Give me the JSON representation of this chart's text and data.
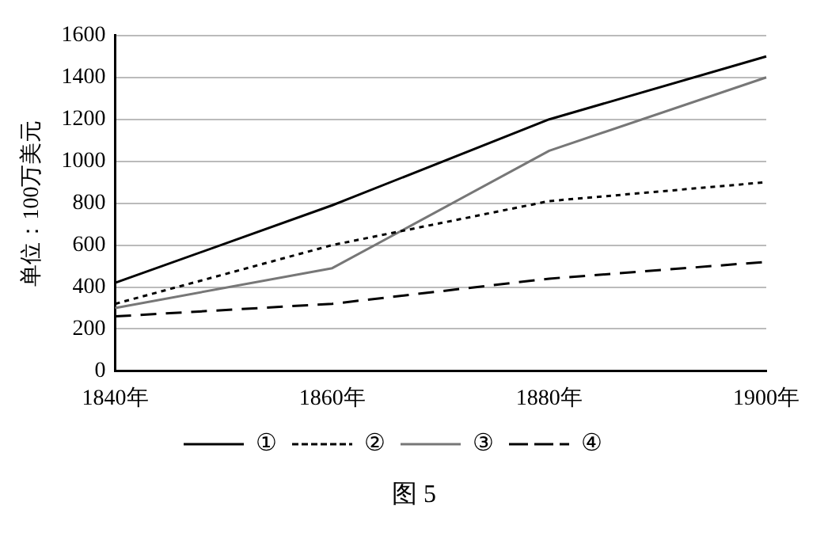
{
  "chart_data": {
    "type": "line",
    "ylabel": "单位：100万美元",
    "categories": [
      "1840年",
      "1860年",
      "1880年",
      "1900年"
    ],
    "series": [
      {
        "name": "①",
        "color": "#000000",
        "line_style": "solid",
        "values": [
          420,
          790,
          1200,
          1500
        ]
      },
      {
        "name": "②",
        "color": "#000000",
        "line_style": "dotted",
        "values": [
          320,
          600,
          810,
          900
        ]
      },
      {
        "name": "③",
        "color": "#777777",
        "line_style": "solid",
        "values": [
          300,
          490,
          1050,
          1400
        ]
      },
      {
        "name": "④",
        "color": "#000000",
        "line_style": "dashed",
        "values": [
          260,
          320,
          440,
          520
        ]
      }
    ],
    "ylim": [
      0,
      1600
    ],
    "yticks": [
      0,
      200,
      400,
      600,
      800,
      1000,
      1200,
      1400,
      1600
    ],
    "grid": "y",
    "legend": "bottom",
    "marker": "none",
    "annotations": [
      "图 5"
    ]
  }
}
